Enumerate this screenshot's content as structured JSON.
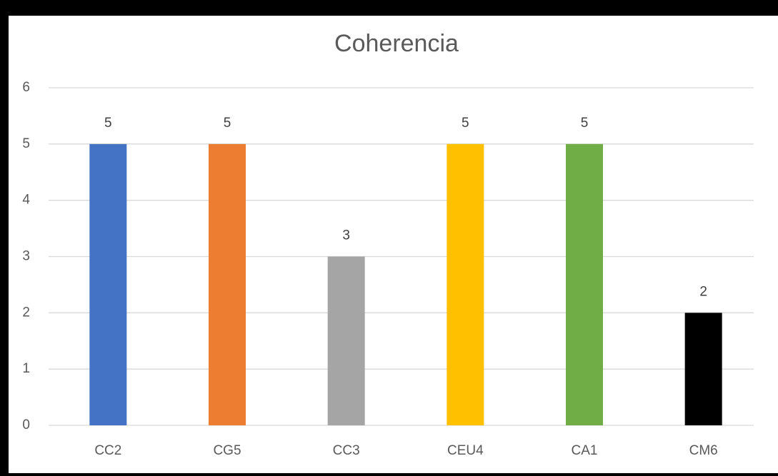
{
  "chart_data": {
    "type": "bar",
    "title": "Coherencia",
    "categories": [
      "CC2",
      "CG5",
      "CC3",
      "CEU4",
      "CA1",
      "CM6"
    ],
    "values": [
      5,
      5,
      3,
      5,
      5,
      2
    ],
    "colors": [
      "#4472c4",
      "#ed7d31",
      "#a5a5a5",
      "#ffc000",
      "#70ad47",
      "#000000"
    ],
    "ylim": [
      0,
      6
    ],
    "yticks": [
      0,
      1,
      2,
      3,
      4,
      5,
      6
    ],
    "grid": true,
    "data_labels": true
  }
}
